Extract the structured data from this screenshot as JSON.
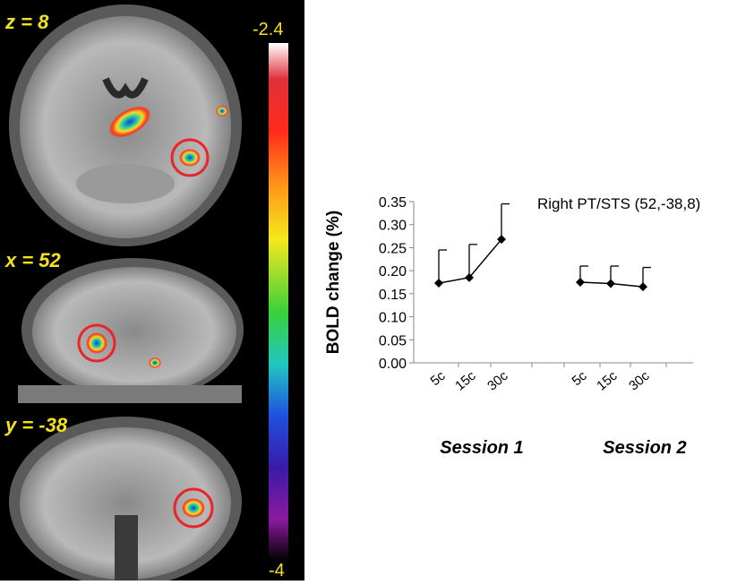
{
  "brain_panel": {
    "slices": [
      {
        "label": "z = 8"
      },
      {
        "label": "x = 52"
      },
      {
        "label": "y = -38"
      }
    ],
    "colorbar": {
      "max_label": "-2.4",
      "min_label": "-4"
    }
  },
  "chart_data": {
    "type": "line",
    "title": "Right PT/STS (52,-38,8)",
    "ylabel": "BOLD change (%)",
    "xlabel": "",
    "ylim": [
      0,
      0.35
    ],
    "yticks": [
      "0.35",
      "0.30",
      "0.25",
      "0.20",
      "0.15",
      "0.10",
      "0.05",
      "0.00"
    ],
    "categories": [
      "5c",
      "15c",
      "30c",
      "5c",
      "15c",
      "30c"
    ],
    "groups": [
      {
        "label": "Session 1",
        "categories": [
          "5c",
          "15c",
          "30c"
        ],
        "values": [
          0.173,
          0.185,
          0.268
        ],
        "errors": [
          0.072,
          0.072,
          0.077
        ]
      },
      {
        "label": "Session 2",
        "categories": [
          "5c",
          "15c",
          "30c"
        ],
        "values": [
          0.175,
          0.172,
          0.165
        ],
        "errors": [
          0.035,
          0.038,
          0.042
        ]
      }
    ],
    "grid": false,
    "legend": "none"
  }
}
